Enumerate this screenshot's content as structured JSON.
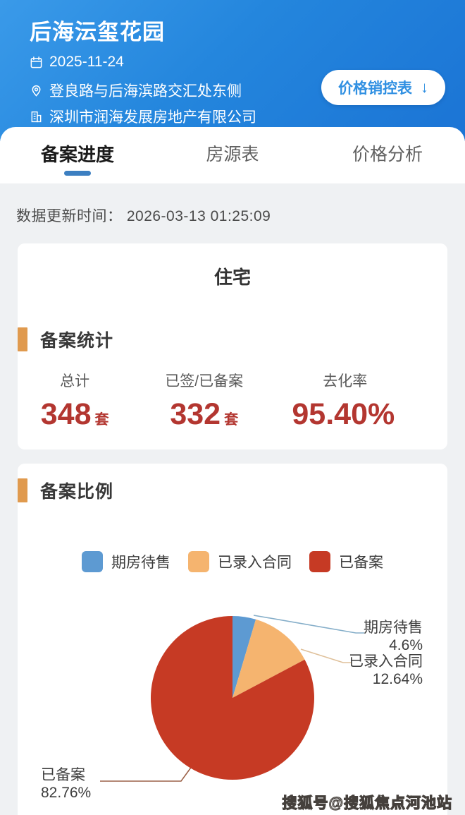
{
  "header": {
    "title": "后海沄玺花园",
    "date": "2025-11-24",
    "address": "登良路与后海滨路交汇处东侧",
    "company": "深圳市润海发展房地产有限公司",
    "price_button": "价格销控表",
    "price_button_arrow": "↓"
  },
  "tabs": [
    {
      "label": "备案进度",
      "active": true
    },
    {
      "label": "房源表",
      "active": false
    },
    {
      "label": "价格分析",
      "active": false
    }
  ],
  "update": {
    "label": "数据更新时间：",
    "value": "2026-03-13 01:25:09"
  },
  "residential_card": {
    "title": "住宅",
    "section_title": "备案统计",
    "stats": [
      {
        "label": "总计",
        "value": "348",
        "unit": "套"
      },
      {
        "label": "已签/已备案",
        "value": "332",
        "unit": "套"
      },
      {
        "label": "去化率",
        "value": "95.40%",
        "unit": ""
      }
    ]
  },
  "ratio_card": {
    "section_title": "备案比例"
  },
  "chart_data": {
    "type": "pie",
    "title": "备案比例",
    "start_angle_deg": 0,
    "direction": "clockwise",
    "legend_position": "top",
    "unit": "%",
    "slices": [
      {
        "label": "期房待售",
        "value": 4.6,
        "display": "4.6%",
        "color": "#5d9ad2"
      },
      {
        "label": "已录入合同",
        "value": 12.64,
        "display": "12.64%",
        "color": "#f5b46f"
      },
      {
        "label": "已备案",
        "value": 82.76,
        "display": "82.76%",
        "color": "#c63a24"
      }
    ]
  },
  "watermark": "搜狐号@搜狐焦点河池站",
  "colors": {
    "header_blue": "#2486dd",
    "tab_underline": "#3c7fc1",
    "section_bar_orange": "#e09a4e",
    "stat_red": "#b33630"
  }
}
